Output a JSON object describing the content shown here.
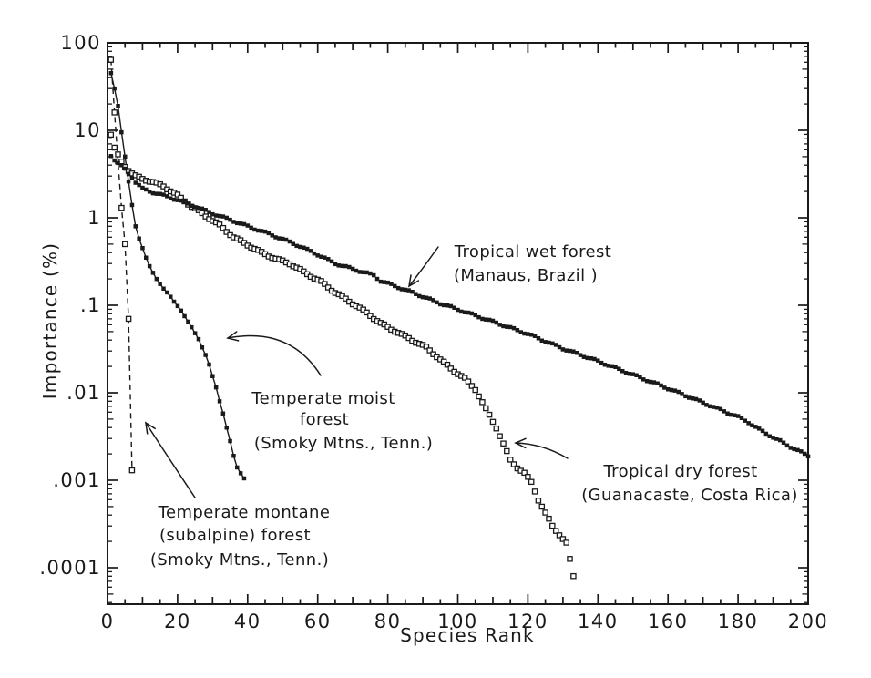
{
  "colors": {
    "ink": "#1a1a1a",
    "paper": "#ffffff"
  },
  "chart_data": {
    "type": "scatter",
    "title": "",
    "xlabel": "Species Rank",
    "ylabel": "Importance (%)",
    "grid": false,
    "legend": "none (curves labeled directly with arrows)",
    "x_axis": {
      "min": 0,
      "max": 200,
      "major_tick_interval": 20,
      "mid_tick_interval": 10,
      "minor_tick_interval": 5,
      "tick_labels": [
        "0",
        "20",
        "40",
        "60",
        "80",
        "100",
        "120",
        "140",
        "160",
        "180",
        "200"
      ]
    },
    "y_axis": {
      "scale": "log",
      "min": 0.0001,
      "max": 100,
      "tick_values": [
        100,
        10,
        1,
        0.1,
        0.01,
        0.001,
        0.0001
      ],
      "tick_labels": [
        "100",
        "10",
        "1",
        ".1",
        ".01",
        ".001",
        ".0001"
      ]
    },
    "series": [
      {
        "key": "montane",
        "name": "Temperate montane (subalpine) forest",
        "location": "Smoky Mtns., Tenn.",
        "marker": "open-square",
        "line": "dashed",
        "interpolate_integer_ranks": false,
        "points": [
          [
            1,
            64
          ],
          [
            2,
            16
          ],
          [
            3,
            4.4
          ],
          [
            4,
            1.3
          ],
          [
            5,
            0.5
          ],
          [
            6,
            0.07
          ],
          [
            7,
            0.0013
          ]
        ]
      },
      {
        "key": "moist",
        "name": "Temperate moist forest",
        "location": "Smoky Mtns., Tenn.",
        "marker": "filled-square",
        "line": "solid",
        "interpolate_integer_ranks": false,
        "points": [
          [
            1,
            45
          ],
          [
            2,
            30
          ],
          [
            3,
            19
          ],
          [
            4,
            9.5
          ],
          [
            5,
            5
          ],
          [
            6,
            2.6
          ],
          [
            7,
            1.4
          ],
          [
            8,
            0.8
          ],
          [
            9,
            0.58
          ],
          [
            10,
            0.45
          ],
          [
            11,
            0.35
          ],
          [
            12,
            0.28
          ],
          [
            13,
            0.235
          ],
          [
            14,
            0.2
          ],
          [
            15,
            0.175
          ],
          [
            16,
            0.155
          ],
          [
            17,
            0.14
          ],
          [
            18,
            0.125
          ],
          [
            19,
            0.11
          ],
          [
            20,
            0.098
          ],
          [
            21,
            0.087
          ],
          [
            22,
            0.075
          ],
          [
            23,
            0.065
          ],
          [
            24,
            0.056
          ],
          [
            25,
            0.048
          ],
          [
            26,
            0.041
          ],
          [
            27,
            0.033
          ],
          [
            28,
            0.027
          ],
          [
            29,
            0.021
          ],
          [
            30,
            0.0155
          ],
          [
            31,
            0.0115
          ],
          [
            32,
            0.008
          ],
          [
            33,
            0.0058
          ],
          [
            34,
            0.004
          ],
          [
            35,
            0.0028
          ],
          [
            36,
            0.0019
          ],
          [
            37,
            0.0014
          ],
          [
            38,
            0.0012
          ],
          [
            39,
            0.00105
          ]
        ]
      },
      {
        "key": "dry",
        "name": "Tropical dry forest",
        "location": "Guanacaste, Costa Rica",
        "marker": "open-square",
        "line": "none",
        "interpolate_integer_ranks": true,
        "points": [
          [
            1,
            8.9
          ],
          [
            2,
            6.2
          ],
          [
            3,
            5.2
          ],
          [
            4,
            4.4
          ],
          [
            5,
            3.9
          ],
          [
            6,
            3.5
          ],
          [
            7,
            3.2
          ],
          [
            8,
            3.0
          ],
          [
            10,
            2.8
          ],
          [
            13,
            2.55
          ],
          [
            16,
            2.3
          ],
          [
            20,
            1.8
          ],
          [
            24,
            1.35
          ],
          [
            28,
            1.05
          ],
          [
            32,
            0.82
          ],
          [
            36,
            0.6
          ],
          [
            40,
            0.49
          ],
          [
            44,
            0.4
          ],
          [
            48,
            0.34
          ],
          [
            52,
            0.3
          ],
          [
            56,
            0.24
          ],
          [
            61,
            0.185
          ],
          [
            65,
            0.14
          ],
          [
            70,
            0.105
          ],
          [
            74,
            0.082
          ],
          [
            78,
            0.062
          ],
          [
            82,
            0.051
          ],
          [
            86,
            0.042
          ],
          [
            91,
            0.033
          ],
          [
            94,
            0.026
          ],
          [
            98,
            0.019
          ],
          [
            102,
            0.0145
          ],
          [
            105,
            0.011
          ],
          [
            108,
            0.0065
          ],
          [
            111,
            0.004
          ],
          [
            113,
            0.0026
          ],
          [
            115,
            0.0017
          ],
          [
            117,
            0.0014
          ],
          [
            119,
            0.0012
          ],
          [
            121,
            0.00095
          ],
          [
            123,
            0.0006
          ],
          [
            125,
            0.00042
          ],
          [
            127,
            0.0003
          ],
          [
            129,
            0.00024
          ],
          [
            131,
            0.00019
          ],
          [
            133,
            8e-05
          ]
        ]
      },
      {
        "key": "wet",
        "name": "Tropical wet forest",
        "location": "Manaus, Brazil",
        "marker": "filled-square",
        "line": "none",
        "interpolate_integer_ranks": true,
        "points": [
          [
            1,
            5.2
          ],
          [
            2,
            4.6
          ],
          [
            3,
            4.2
          ],
          [
            4,
            3.9
          ],
          [
            5,
            3.6
          ],
          [
            6,
            3.2
          ],
          [
            7,
            2.9
          ],
          [
            8,
            2.55
          ],
          [
            10,
            2.15
          ],
          [
            13,
            1.95
          ],
          [
            16,
            1.8
          ],
          [
            20,
            1.6
          ],
          [
            25,
            1.35
          ],
          [
            30,
            1.12
          ],
          [
            35,
            0.95
          ],
          [
            40,
            0.8
          ],
          [
            45,
            0.68
          ],
          [
            50,
            0.57
          ],
          [
            55,
            0.47
          ],
          [
            60,
            0.38
          ],
          [
            65,
            0.3
          ],
          [
            70,
            0.26
          ],
          [
            76,
            0.22
          ],
          [
            78,
            0.19
          ],
          [
            86,
            0.145
          ],
          [
            95,
            0.105
          ],
          [
            102,
            0.084
          ],
          [
            110,
            0.065
          ],
          [
            120,
            0.047
          ],
          [
            130,
            0.032
          ],
          [
            140,
            0.023
          ],
          [
            151,
            0.0155
          ],
          [
            160,
            0.0112
          ],
          [
            170,
            0.0077
          ],
          [
            180,
            0.0053
          ],
          [
            183,
            0.0046
          ],
          [
            186,
            0.0038
          ],
          [
            190,
            0.0031
          ],
          [
            195,
            0.0024
          ],
          [
            200,
            0.0019
          ]
        ]
      }
    ],
    "annotations": {
      "wet": {
        "line1": "Tropical wet forest",
        "line2": "(Manaus, Brazil )"
      },
      "moist": {
        "line1": "Temperate moist",
        "line2": "forest",
        "line3": "(Smoky Mtns., Tenn.)"
      },
      "montane": {
        "line1": "Temperate montane",
        "line2": "(subalpine) forest",
        "line3": "(Smoky Mtns., Tenn.)"
      },
      "dry": {
        "line1": "Tropical dry forest",
        "line2": "(Guanacaste, Costa Rica)"
      }
    }
  }
}
